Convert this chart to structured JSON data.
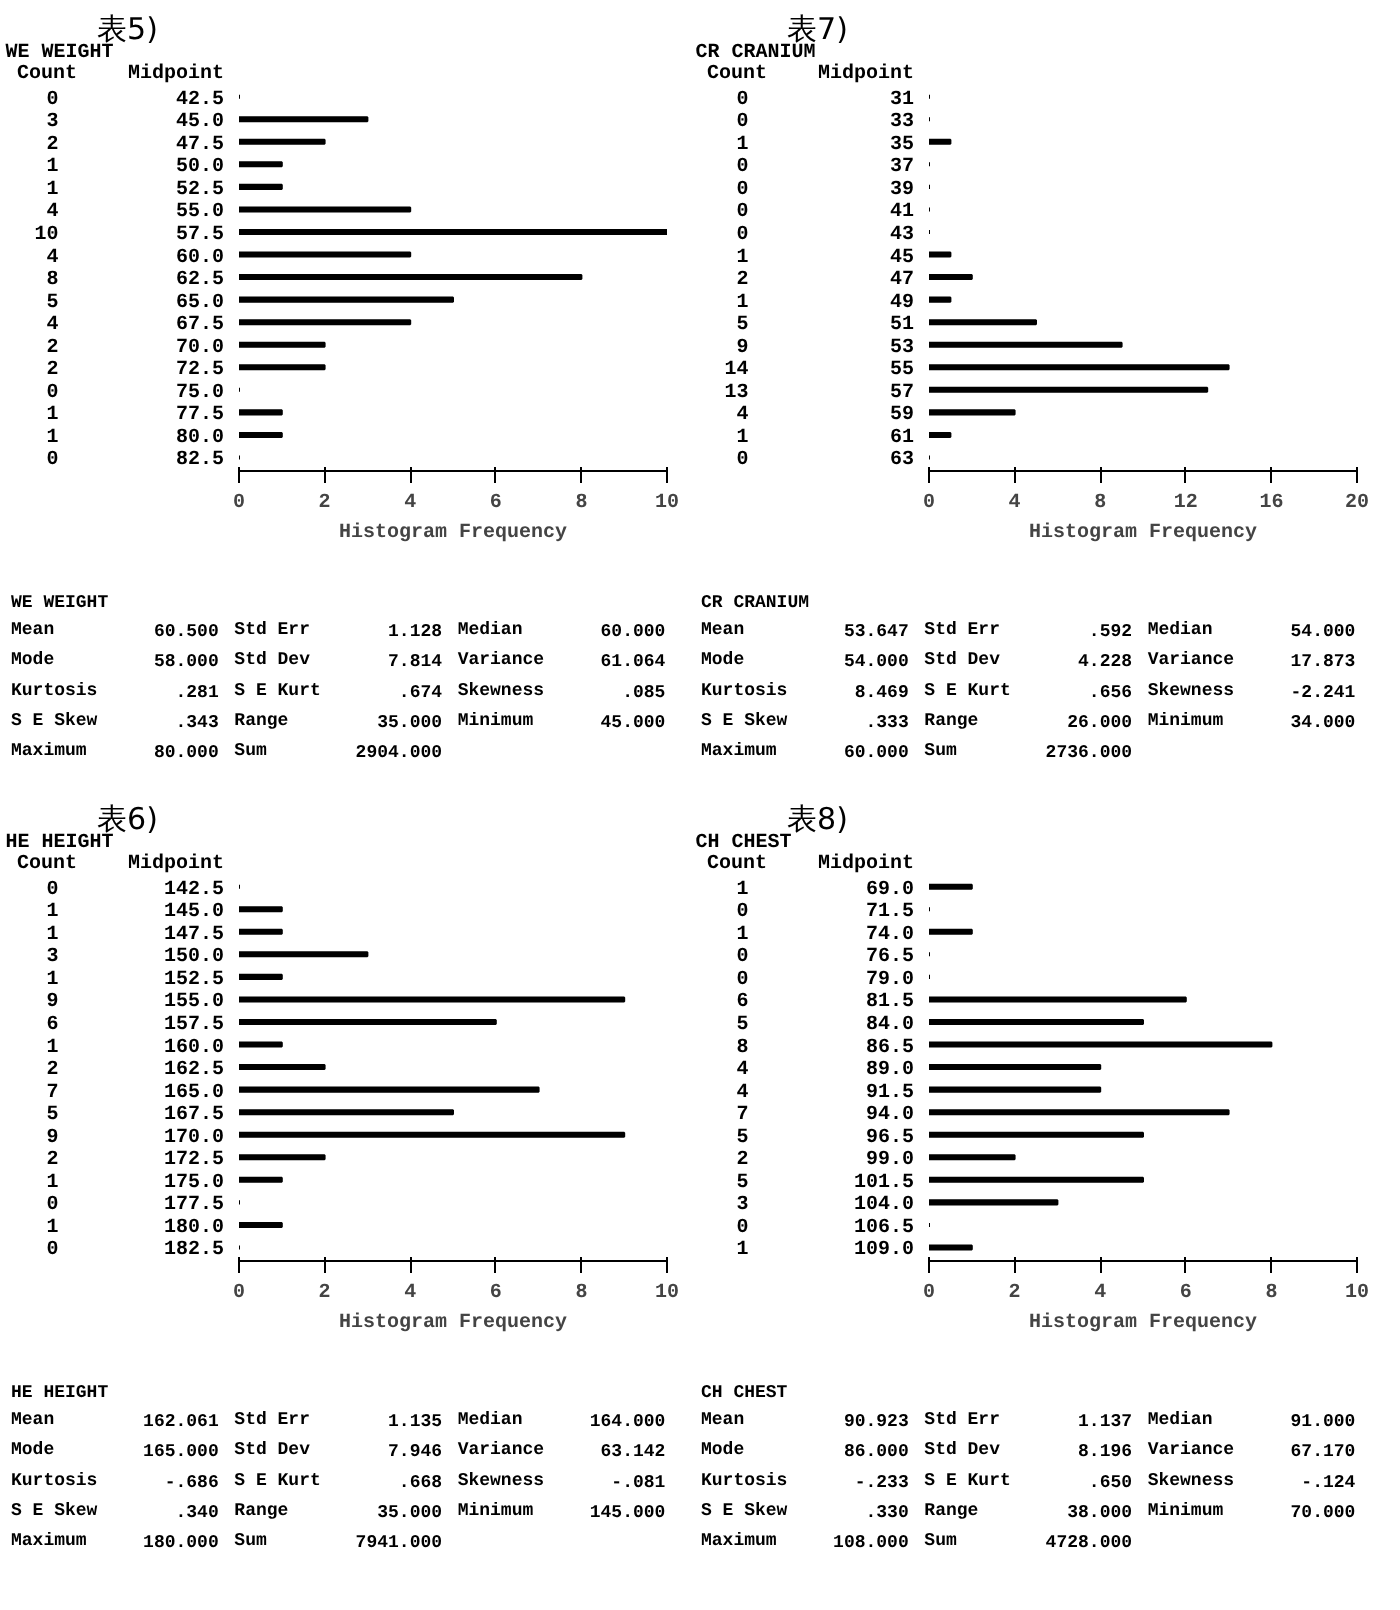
{
  "chart_data": [
    {
      "type": "bar",
      "orientation": "horizontal",
      "title": "表5)",
      "subtitle": "WE     WEIGHT",
      "ylabel": "Midpoint",
      "xlabel": "Histogram Frequency",
      "color": "#000000",
      "grid": false,
      "data_labels": true,
      "categories": [
        "42.5",
        "45.0",
        "47.5",
        "50.0",
        "52.5",
        "55.0",
        "57.5",
        "60.0",
        "62.5",
        "65.0",
        "67.5",
        "70.0",
        "72.5",
        "75.0",
        "77.5",
        "80.0",
        "82.5"
      ],
      "values": [
        0,
        3,
        2,
        1,
        1,
        4,
        10,
        4,
        8,
        5,
        4,
        2,
        2,
        0,
        1,
        1,
        0
      ],
      "xlim": [
        0,
        10
      ],
      "xticks": [
        0,
        2,
        4,
        6,
        8,
        10
      ],
      "annotations": [
        "Count",
        "Mean 60.500",
        "Std Err 1.128",
        "Median 60.000",
        "Mode 58.000",
        "Std Dev 7.814",
        "Variance 61.064",
        "Kurtosis .281",
        "S E Kurt .674",
        "Skewness .085",
        "S E Skew .343",
        "Range 35.000",
        "Minimum 45.000",
        "Maximum 80.000",
        "Sum 2904.000"
      ]
    },
    {
      "type": "bar",
      "orientation": "horizontal",
      "title": "表7)",
      "subtitle": "CR     CRANIUM",
      "ylabel": "Midpoint",
      "xlabel": "Histogram Frequency",
      "color": "#000000",
      "grid": false,
      "data_labels": true,
      "categories": [
        "31",
        "33",
        "35",
        "37",
        "39",
        "41",
        "43",
        "45",
        "47",
        "49",
        "51",
        "53",
        "55",
        "57",
        "59",
        "61",
        "63"
      ],
      "values": [
        0,
        0,
        1,
        0,
        0,
        0,
        0,
        1,
        2,
        1,
        5,
        9,
        14,
        13,
        4,
        1,
        0
      ],
      "xlim": [
        0,
        20
      ],
      "xticks": [
        0,
        4,
        8,
        12,
        16,
        20
      ],
      "annotations": [
        "Count",
        "Mean 53.647",
        "Std Err .592",
        "Median 54.000",
        "Mode 54.000",
        "Std Dev 4.228",
        "Variance 17.873",
        "Kurtosis 8.469",
        "S E Kurt .656",
        "Skewness -2.241",
        "S E Skew .333",
        "Range 26.000",
        "Minimum 34.000",
        "Maximum 60.000",
        "Sum 2736.000"
      ]
    },
    {
      "type": "bar",
      "orientation": "horizontal",
      "title": "表6)",
      "subtitle": "HE     HEIGHT",
      "ylabel": "Midpoint",
      "xlabel": "Histogram Frequency",
      "color": "#000000",
      "grid": false,
      "data_labels": true,
      "categories": [
        "142.5",
        "145.0",
        "147.5",
        "150.0",
        "152.5",
        "155.0",
        "157.5",
        "160.0",
        "162.5",
        "165.0",
        "167.5",
        "170.0",
        "172.5",
        "175.0",
        "177.5",
        "180.0",
        "182.5"
      ],
      "values": [
        0,
        1,
        1,
        3,
        1,
        9,
        6,
        1,
        2,
        7,
        5,
        9,
        2,
        1,
        0,
        1,
        0
      ],
      "xlim": [
        0,
        10
      ],
      "xticks": [
        0,
        2,
        4,
        6,
        8,
        10
      ],
      "annotations": [
        "Count",
        "Mean 162.061",
        "Std Err 1.135",
        "Median 164.000",
        "Mode 165.000",
        "Std Dev 7.946",
        "Variance 63.142",
        "Kurtosis -.686",
        "S E Kurt .668",
        "Skewness -.081",
        "S E Skew .340",
        "Range 35.000",
        "Minimum 145.000",
        "Maximum 180.000",
        "Sum 7941.000"
      ]
    },
    {
      "type": "bar",
      "orientation": "horizontal",
      "title": "表8)",
      "subtitle": "CH     CHEST",
      "ylabel": "Midpoint",
      "xlabel": "Histogram Frequency",
      "color": "#000000",
      "grid": false,
      "data_labels": true,
      "categories": [
        "69.0",
        "71.5",
        "74.0",
        "76.5",
        "79.0",
        "81.5",
        "84.0",
        "86.5",
        "89.0",
        "91.5",
        "94.0",
        "96.5",
        "99.0",
        "101.5",
        "104.0",
        "106.5",
        "109.0"
      ],
      "values": [
        1,
        0,
        1,
        0,
        0,
        6,
        5,
        8,
        4,
        4,
        7,
        5,
        2,
        5,
        3,
        0,
        1
      ],
      "xlim": [
        0,
        10
      ],
      "xticks": [
        0,
        2,
        4,
        6,
        8,
        10
      ],
      "annotations": [
        "Count",
        "Mean 90.923",
        "Std Err 1.137",
        "Median 91.000",
        "Mode 86.000",
        "Std Dev 8.196",
        "Variance 67.170",
        "Kurtosis -.233",
        "S E Kurt .650",
        "Skewness -.124",
        "S E Skew .330",
        "Range 38.000",
        "Minimum 70.000",
        "Maximum 108.000",
        "Sum 4728.000"
      ]
    }
  ]
}
